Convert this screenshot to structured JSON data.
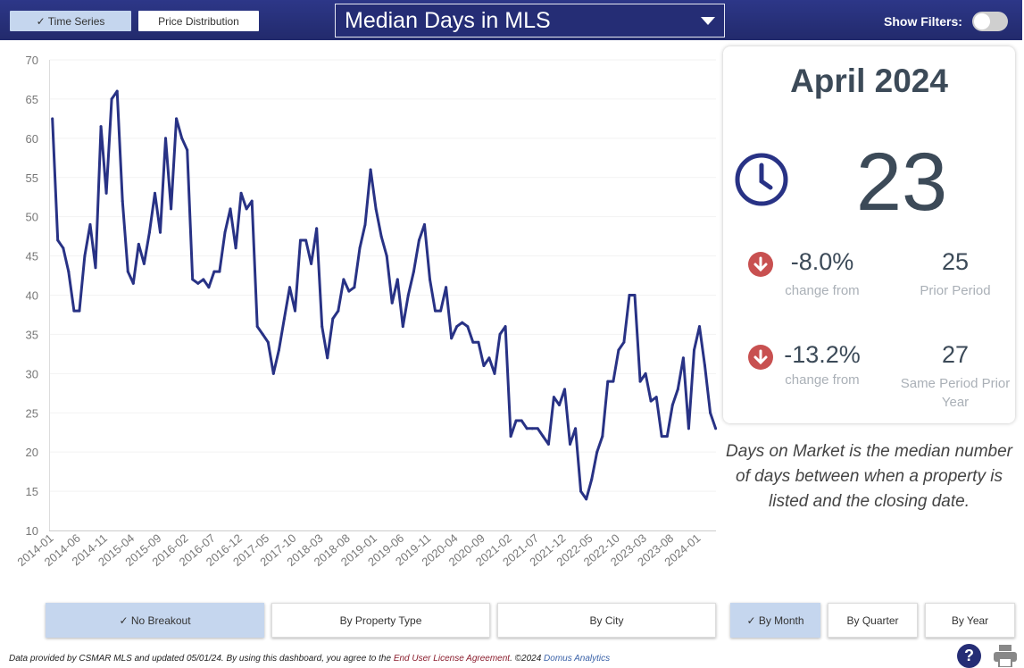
{
  "header": {
    "view_tabs": [
      {
        "label": "✓ Time Series",
        "active": true
      },
      {
        "label": "Price Distribution",
        "active": false
      }
    ],
    "metric_select": {
      "value": "Median Days in MLS",
      "icon": "caret-down-icon"
    },
    "show_filters_label": "Show Filters:",
    "show_filters_on": false
  },
  "summary": {
    "period": "April 2024",
    "value": "23",
    "icon": "clock-icon",
    "comparisons": [
      {
        "change": "-8.0%",
        "change_label": "change from",
        "value": "25",
        "label": "Prior Period",
        "direction": "down",
        "icon": "arrow-down-circle-icon"
      },
      {
        "change": "-13.2%",
        "change_label": "change from",
        "value": "27",
        "label": "Same Period Prior Year",
        "direction": "down",
        "icon": "arrow-down-circle-icon"
      }
    ],
    "description": "Days on Market is the median number of days between when a property is listed and the closing date."
  },
  "breakout_buttons": [
    {
      "label": "✓ No Breakout",
      "active": true
    },
    {
      "label": "By Property Type",
      "active": false
    },
    {
      "label": "By City",
      "active": false
    }
  ],
  "period_buttons": [
    {
      "label": "✓ By Month",
      "active": true
    },
    {
      "label": "By Quarter",
      "active": false
    },
    {
      "label": "By Year",
      "active": false
    }
  ],
  "footer": {
    "text_prefix": "Data provided by CSMAR MLS and updated 05/01/24.  By using this dashboard, you agree to the ",
    "eula_link": "End User License Agreement",
    "text_mid": ".  ©2024 ",
    "company_link": "Domus Analytics",
    "help_label": "?",
    "help_icon": "help-icon",
    "print_icon": "printer-icon"
  },
  "colors": {
    "header": "#252d75",
    "line": "#283285",
    "active_button": "#c5d6ee",
    "down": "#c85050",
    "text": "#3c4a58"
  },
  "chart_data": {
    "type": "line",
    "start": "2014-01",
    "frequency": "monthly",
    "ylim": [
      10,
      70
    ],
    "yticks": [
      10,
      15,
      20,
      25,
      30,
      35,
      40,
      45,
      50,
      55,
      60,
      65,
      70
    ],
    "xtick_labels": [
      "2014-01",
      "2014-06",
      "2014-11",
      "2015-04",
      "2015-09",
      "2016-02",
      "2016-07",
      "2016-12",
      "2017-05",
      "2017-10",
      "2018-03",
      "2018-08",
      "2019-01",
      "2019-06",
      "2019-11",
      "2020-04",
      "2020-09",
      "2021-02",
      "2021-07",
      "2021-12",
      "2022-05",
      "2022-10",
      "2023-03",
      "2023-08",
      "2024-01"
    ],
    "grid": true,
    "values": [
      62.5,
      47,
      46,
      43,
      38,
      38,
      45,
      49,
      43.5,
      61.5,
      53,
      65,
      66,
      52,
      43,
      41.5,
      46.5,
      44,
      48,
      53,
      48,
      60,
      51,
      62.5,
      60,
      58.5,
      42,
      41.5,
      42,
      41,
      43,
      43,
      48,
      51,
      46,
      53,
      51,
      52,
      36,
      35,
      34,
      30,
      33,
      37,
      41,
      38,
      47,
      47,
      44,
      48.5,
      36,
      32,
      37,
      38,
      42,
      40.5,
      41,
      46,
      49,
      56,
      51,
      47.5,
      45,
      39,
      42,
      36,
      40,
      43,
      47,
      49,
      42,
      38,
      38,
      41,
      34.5,
      36,
      36.5,
      36,
      34,
      34,
      31,
      32,
      30,
      35,
      36,
      22,
      24,
      24,
      23,
      23,
      23,
      22,
      21,
      27,
      26,
      28,
      21,
      23,
      15,
      14,
      16.5,
      20,
      22,
      29,
      29,
      33,
      34,
      40,
      40,
      29,
      30,
      26.5,
      27,
      22,
      22,
      26,
      28,
      32,
      23,
      33,
      36,
      31,
      25,
      23
    ]
  }
}
